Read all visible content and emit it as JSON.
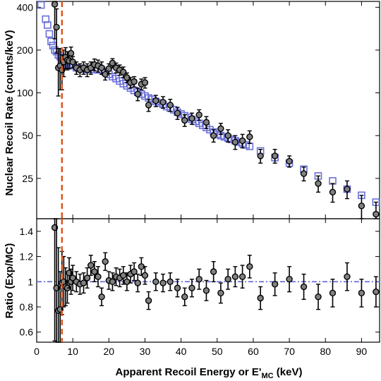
{
  "chart_data": [
    {
      "type": "scatter",
      "panel": "upper",
      "ylabel": "Nuclear Recoil Rate (counts/keV)",
      "yscale": "log",
      "xlim": [
        0,
        95
      ],
      "ylim": [
        13,
        440
      ],
      "yticks": [
        25,
        50,
        100,
        200,
        400
      ],
      "ytick_labels": [
        "25",
        "50",
        "100",
        "200",
        "400"
      ],
      "threshold_line": {
        "x": 7,
        "color": "#d95319",
        "style": "dashed"
      },
      "colors": {
        "exp": "#808080",
        "mc": "#6a6fd8"
      },
      "series": [
        {
          "marker": "square",
          "x": [
            1.2,
            2.5,
            3.0,
            3.5,
            4.0,
            4.5,
            5.0,
            5.5,
            6.0,
            6.5,
            7.0,
            7.5,
            8.0,
            8.5,
            9.0,
            10,
            11,
            12,
            13,
            14,
            15,
            16,
            17,
            18,
            19,
            20,
            21,
            22,
            23,
            24,
            25,
            26,
            27,
            28,
            29,
            30,
            31,
            32,
            33,
            34,
            35,
            36,
            37,
            38,
            39,
            40,
            41,
            42,
            43,
            44,
            45,
            46,
            47,
            48,
            49,
            50,
            51,
            52,
            53,
            54,
            55,
            56,
            57,
            58,
            59,
            62,
            66,
            70,
            74,
            78,
            82,
            86,
            90,
            94
          ],
          "y": [
            415,
            330,
            300,
            260,
            230,
            215,
            200,
            195,
            185,
            180,
            175,
            170,
            165,
            160,
            158,
            155,
            150,
            148,
            147,
            146,
            146,
            146,
            145,
            145,
            140,
            135,
            130,
            126,
            121,
            116,
            112,
            108,
            104,
            101,
            98,
            95,
            92,
            90,
            87,
            85,
            83,
            80,
            78,
            76,
            73,
            71,
            69,
            67,
            65,
            63,
            61,
            59,
            57,
            55,
            53,
            51,
            50,
            49,
            48,
            47,
            46,
            45,
            44,
            43,
            42,
            39,
            35,
            32,
            29,
            26,
            24,
            21,
            19,
            17
          ]
        },
        {
          "marker": "circle",
          "x": [
            5.0,
            5.5,
            6.0,
            6.5,
            7.0,
            7.5,
            8.0,
            8.5,
            9.0,
            9.5,
            10,
            11,
            12,
            13,
            14,
            15,
            16,
            17,
            18,
            19,
            20,
            21,
            22,
            23,
            24,
            25,
            26,
            27,
            28,
            29,
            30,
            31,
            33,
            35,
            37,
            39,
            41,
            43,
            45,
            47,
            49,
            51,
            53,
            55,
            57,
            59,
            62,
            66,
            70,
            74,
            78,
            82,
            86,
            90,
            94
          ],
          "y": [
            420,
            290,
            150,
            155,
            145,
            165,
            178,
            170,
            168,
            190,
            165,
            150,
            145,
            150,
            145,
            150,
            158,
            155,
            150,
            135,
            148,
            162,
            150,
            145,
            140,
            128,
            118,
            120,
            98,
            115,
            118,
            82,
            88,
            86,
            82,
            72,
            64,
            66,
            70,
            62,
            50,
            56,
            50,
            45,
            46,
            49,
            36,
            36,
            33,
            27,
            23,
            20,
            21,
            16,
            14
          ],
          "err": [
            180,
            100,
            55,
            50,
            40,
            35,
            30,
            25,
            20,
            20,
            15,
            15,
            15,
            15,
            15,
            15,
            15,
            15,
            15,
            12,
            12,
            12,
            12,
            12,
            12,
            10,
            10,
            10,
            10,
            10,
            10,
            8,
            8,
            8,
            8,
            7,
            6,
            6,
            6,
            6,
            5,
            5,
            5,
            5,
            5,
            5,
            4,
            4,
            3,
            3,
            3,
            3,
            3,
            3,
            3
          ]
        }
      ]
    },
    {
      "type": "scatter",
      "panel": "lower",
      "ylabel": "Ratio (Exp/MC)",
      "xlabel": "Apparent Recoil Energy or E'",
      "xlabel_subscript": "MC",
      "xlabel_suffix": " (keV)",
      "xlim": [
        0,
        95
      ],
      "ylim": [
        0.52,
        1.5
      ],
      "xticks": [
        0,
        10,
        20,
        30,
        40,
        50,
        60,
        70,
        80,
        90
      ],
      "xtick_labels": [
        "0",
        "10",
        "20",
        "30",
        "40",
        "50",
        "60",
        "70",
        "80",
        "90"
      ],
      "yticks": [
        0.6,
        0.8,
        1.0,
        1.2,
        1.4
      ],
      "ytick_labels": [
        "0.6",
        "0.8",
        "1",
        "1.2",
        "1.4"
      ],
      "reference_line": {
        "y": 1.0,
        "color": "#6a6fd8",
        "style": "dash-dot"
      },
      "threshold_line": {
        "x": 7,
        "color": "#d95319",
        "style": "dashed"
      },
      "series": [
        {
          "marker": "circle",
          "x": [
            5.0,
            5.5,
            6.0,
            6.5,
            7.0,
            7.5,
            8.0,
            8.5,
            9.0,
            9.5,
            10,
            11,
            12,
            13,
            14,
            15,
            16,
            17,
            18,
            19,
            20,
            21,
            22,
            23,
            24,
            25,
            26,
            27,
            28,
            29,
            30,
            31,
            33,
            35,
            37,
            39,
            41,
            43,
            45,
            47,
            49,
            51,
            53,
            55,
            57,
            59,
            62,
            66,
            70,
            74,
            78,
            82,
            86,
            90,
            94
          ],
          "y": [
            1.43,
            0.95,
            0.77,
            0.78,
            0.99,
            1.0,
            0.96,
            0.95,
            1.07,
            1.0,
            1.03,
            1.0,
            0.98,
            0.99,
            1.03,
            1.13,
            1.08,
            1.04,
            0.88,
            1.16,
            1.01,
            1.0,
            1.04,
            1.03,
            1.05,
            1.0,
            1.06,
            1.08,
            0.99,
            1.12,
            1.05,
            0.85,
            1.0,
            0.99,
            1.0,
            0.95,
            0.88,
            0.95,
            1.02,
            0.93,
            1.08,
            0.91,
            1.02,
            1.04,
            1.04,
            1.12,
            0.87,
            0.98,
            1.02,
            0.96,
            0.88,
            0.91,
            1.04,
            0.91,
            0.92
          ],
          "err": [
            0.9,
            0.7,
            0.5,
            0.3,
            0.25,
            0.2,
            0.15,
            0.12,
            0.12,
            0.1,
            0.1,
            0.08,
            0.08,
            0.08,
            0.08,
            0.08,
            0.08,
            0.08,
            0.07,
            0.07,
            0.07,
            0.07,
            0.07,
            0.07,
            0.07,
            0.07,
            0.07,
            0.07,
            0.07,
            0.07,
            0.07,
            0.07,
            0.07,
            0.07,
            0.07,
            0.07,
            0.07,
            0.07,
            0.08,
            0.08,
            0.08,
            0.08,
            0.08,
            0.08,
            0.09,
            0.09,
            0.09,
            0.09,
            0.1,
            0.1,
            0.1,
            0.11,
            0.11,
            0.11,
            0.12
          ]
        }
      ]
    }
  ]
}
